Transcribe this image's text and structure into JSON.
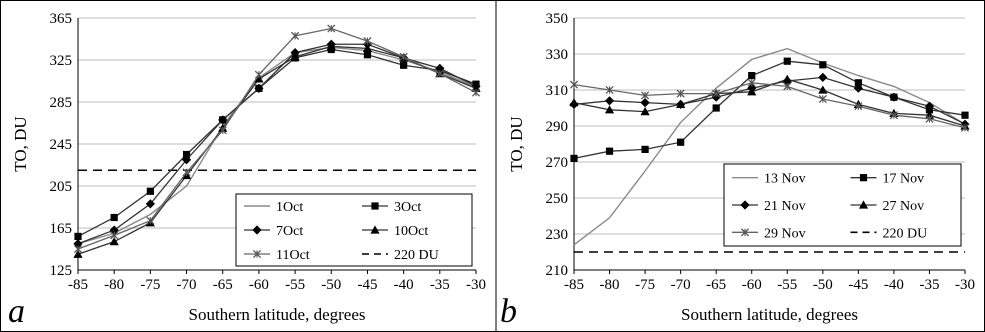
{
  "chart_data": [
    {
      "type": "line",
      "panel_label": "a",
      "xlabel": "Southern latitude, degrees",
      "ylabel": "TO, DU",
      "x": [
        -85,
        -80,
        -75,
        -70,
        -65,
        -60,
        -55,
        -50,
        -45,
        -40,
        -35,
        -30
      ],
      "xlim": [
        -85,
        -30
      ],
      "ylim": [
        125,
        365
      ],
      "yticks": [
        125,
        165,
        205,
        245,
        285,
        325,
        365
      ],
      "grid": "horizontal",
      "legend_position": "bottom-right",
      "reference_line": {
        "name": "220 DU",
        "value": 220
      },
      "series": [
        {
          "name": "1Oct",
          "marker": "none",
          "values": [
            150,
            160,
            178,
            205,
            262,
            308,
            332,
            337,
            334,
            325,
            314,
            299
          ]
        },
        {
          "name": "3Oct",
          "marker": "square",
          "values": [
            157,
            175,
            200,
            235,
            268,
            298,
            327,
            335,
            330,
            320,
            315,
            302
          ]
        },
        {
          "name": "7Oct",
          "marker": "diamond",
          "values": [
            150,
            163,
            188,
            230,
            268,
            298,
            332,
            340,
            340,
            327,
            317,
            300
          ]
        },
        {
          "name": "10Oct",
          "marker": "triangle",
          "values": [
            140,
            152,
            170,
            215,
            260,
            307,
            328,
            338,
            336,
            327,
            312,
            298
          ]
        },
        {
          "name": "11Oct",
          "marker": "x",
          "values": [
            145,
            158,
            172,
            218,
            258,
            311,
            348,
            355,
            343,
            328,
            312,
            294
          ]
        }
      ],
      "legend_entries": [
        "1Oct",
        "3Oct",
        "7Oct",
        "10Oct",
        "11Oct",
        "220 DU"
      ],
      "x_tick_labels": [
        "-85",
        "-80",
        "-75",
        "-70",
        "-65",
        "-60",
        "-55",
        "-50",
        "-45",
        "-40",
        "-35",
        "-30"
      ],
      "y_tick_labels": [
        "125",
        "165",
        "205",
        "245",
        "285",
        "325",
        "365"
      ]
    },
    {
      "type": "line",
      "panel_label": "b",
      "xlabel": "Southern latitude, degrees",
      "ylabel": "TO, DU",
      "x": [
        -85,
        -80,
        -75,
        -70,
        -65,
        -60,
        -55,
        -50,
        -45,
        -40,
        -35,
        -30
      ],
      "xlim": [
        -85,
        -30
      ],
      "ylim": [
        210,
        350
      ],
      "yticks": [
        210,
        230,
        250,
        270,
        290,
        310,
        330,
        350
      ],
      "grid": "horizontal",
      "legend_position": "bottom-right",
      "reference_line": {
        "name": "220 DU",
        "value": 220
      },
      "series": [
        {
          "name": "13 Nov",
          "marker": "none",
          "values": [
            224,
            239,
            265,
            292,
            311,
            327,
            333,
            325,
            318,
            312,
            303,
            291
          ]
        },
        {
          "name": "17 Nov",
          "marker": "square",
          "values": [
            272,
            276,
            277,
            281,
            300,
            318,
            326,
            324,
            314,
            306,
            299,
            296
          ]
        },
        {
          "name": "21 Nov",
          "marker": "diamond",
          "values": [
            302,
            304,
            303,
            302,
            306,
            311,
            315,
            317,
            311,
            306,
            301,
            291
          ]
        },
        {
          "name": "27 Nov",
          "marker": "triangle",
          "values": [
            303,
            299,
            298,
            302,
            308,
            309,
            316,
            310,
            302,
            297,
            296,
            290
          ]
        },
        {
          "name": "29 Nov",
          "marker": "x",
          "values": [
            313,
            310,
            307,
            308,
            308,
            314,
            312,
            305,
            301,
            296,
            294,
            289
          ]
        }
      ],
      "legend_entries": [
        "13 Nov",
        "17 Nov",
        "21 Nov",
        "27 Nov",
        "29 Nov",
        "220 DU"
      ],
      "x_tick_labels": [
        "-85",
        "-80",
        "-75",
        "-70",
        "-65",
        "-60",
        "-55",
        "-50",
        "-45",
        "-40",
        "-35",
        "-30"
      ],
      "y_tick_labels": [
        "210",
        "230",
        "250",
        "270",
        "290",
        "310",
        "330",
        "350"
      ]
    }
  ]
}
